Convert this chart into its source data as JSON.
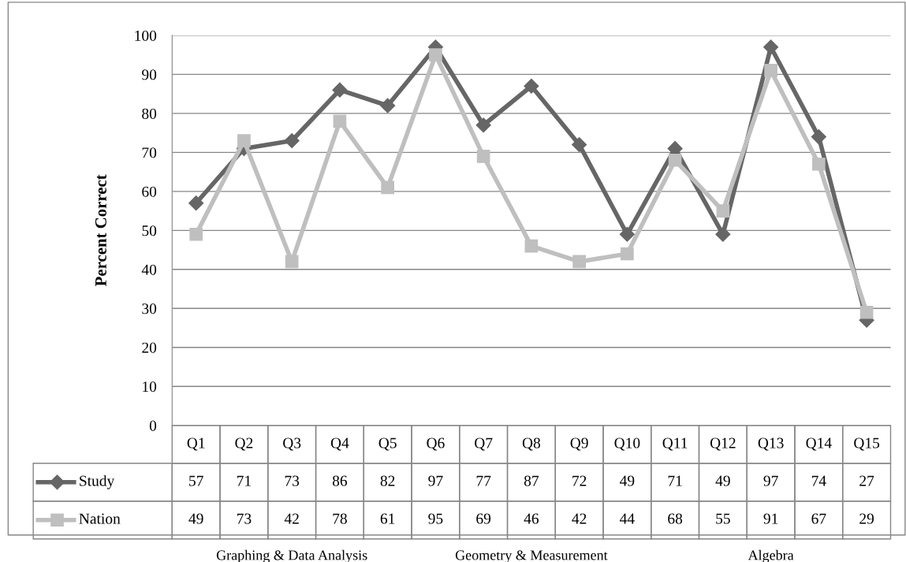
{
  "chart_data": {
    "type": "line",
    "ylabel": "Percent Correct",
    "categories": [
      "Q1",
      "Q2",
      "Q3",
      "Q4",
      "Q5",
      "Q6",
      "Q7",
      "Q8",
      "Q9",
      "Q10",
      "Q11",
      "Q12",
      "Q13",
      "Q14",
      "Q15"
    ],
    "series": [
      {
        "name": "Study",
        "color": "#666666",
        "marker": "diamond",
        "values": [
          57,
          71,
          73,
          86,
          82,
          97,
          77,
          87,
          72,
          49,
          71,
          49,
          97,
          74,
          27
        ]
      },
      {
        "name": "Nation",
        "color": "#bfbfbf",
        "marker": "square",
        "values": [
          49,
          73,
          42,
          78,
          61,
          95,
          69,
          46,
          42,
          44,
          68,
          55,
          91,
          67,
          29
        ]
      }
    ],
    "ylim": [
      0,
      100
    ],
    "yticks": [
      0,
      10,
      20,
      30,
      40,
      50,
      60,
      70,
      80,
      90,
      100
    ],
    "grid": "y",
    "legend": "bottom",
    "data_labels": true,
    "line_style": "solid",
    "annotations": [
      "Graphing & Data Analysis",
      "Geometry & Measurement",
      "Algebra"
    ]
  }
}
